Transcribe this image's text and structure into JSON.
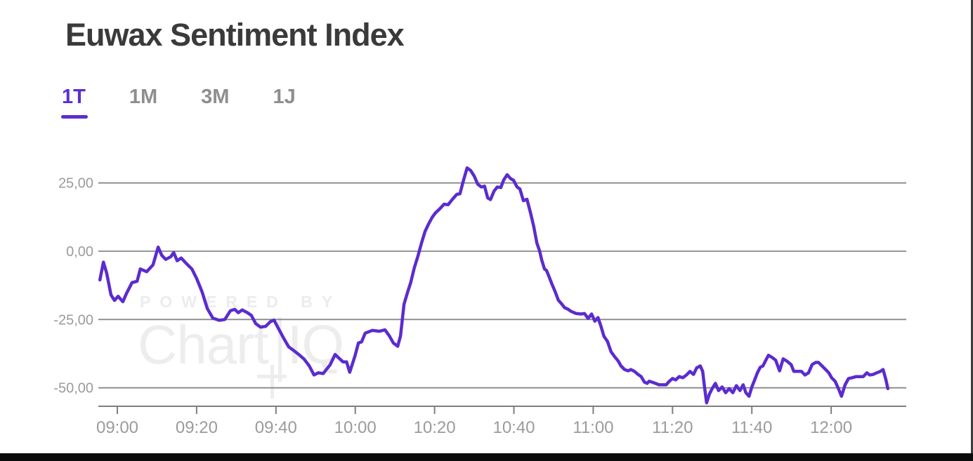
{
  "header": {
    "title": "Euwax Sentiment Index"
  },
  "tabs": [
    {
      "label": "1T",
      "active": true
    },
    {
      "label": "1M",
      "active": false
    },
    {
      "label": "3M",
      "active": false
    },
    {
      "label": "1J",
      "active": false
    }
  ],
  "watermark": {
    "line1": "POWERED BY",
    "brand_left": "Chart",
    "brand_right": "IQ"
  },
  "colors": {
    "accent": "#5b2cce",
    "grid": "#888888",
    "axis": "#7f7f7f",
    "axis_label": "#9b9b9b",
    "title_text": "#3a3a3a",
    "tab_inactive": "#8e8e8e",
    "tab_active": "#5b2ed1"
  },
  "chart_data": {
    "type": "line",
    "title": "Euwax Sentiment Index",
    "series_name": "Euwax Sentiment Index (1T)",
    "line_color": "#5b2cce",
    "xlabel": "",
    "ylabel": "",
    "grid": true,
    "legend": "none",
    "ylim": [
      -60,
      35
    ],
    "x_axis_unit": "minutes after 09:00",
    "y_ticks": [
      {
        "v": 25,
        "label": "25,00"
      },
      {
        "v": 0,
        "label": "0,00"
      },
      {
        "v": -25,
        "label": "-25,00"
      },
      {
        "v": -50,
        "label": "-50,00"
      }
    ],
    "x_ticks": [
      {
        "t": 0,
        "label": "09:00"
      },
      {
        "t": 20,
        "label": "09:20"
      },
      {
        "t": 40,
        "label": "09:40"
      },
      {
        "t": 60,
        "label": "10:00"
      },
      {
        "t": 80,
        "label": "10:20"
      },
      {
        "t": 100,
        "label": "10:40"
      },
      {
        "t": 120,
        "label": "11:00"
      },
      {
        "t": 140,
        "label": "11:20"
      },
      {
        "t": 160,
        "label": "11:40"
      },
      {
        "t": 180,
        "label": "12:00"
      }
    ],
    "points": [
      [
        -4.4,
        -10.5
      ],
      [
        -3.5,
        -4
      ],
      [
        -2.7,
        -8
      ],
      [
        -1.6,
        -16
      ],
      [
        -0.7,
        -18
      ],
      [
        0.2,
        -16.5
      ],
      [
        1.4,
        -18.5
      ],
      [
        2.3,
        -15.5
      ],
      [
        3.7,
        -11.5
      ],
      [
        5,
        -11
      ],
      [
        5.8,
        -6.5
      ],
      [
        7.4,
        -7.5
      ],
      [
        9,
        -5
      ],
      [
        10.3,
        1.5
      ],
      [
        11.2,
        -1.5
      ],
      [
        12.2,
        -3
      ],
      [
        13.5,
        -2
      ],
      [
        14.2,
        -0.5
      ],
      [
        15.1,
        -3.5
      ],
      [
        16.1,
        -2.5
      ],
      [
        17.4,
        -4.5
      ],
      [
        18.8,
        -6.5
      ],
      [
        20,
        -10
      ],
      [
        21.4,
        -15
      ],
      [
        22.7,
        -21
      ],
      [
        24.1,
        -24.5
      ],
      [
        25.7,
        -25.3
      ],
      [
        27.1,
        -25
      ],
      [
        28.5,
        -21.8
      ],
      [
        29.6,
        -21.3
      ],
      [
        30.5,
        -22.5
      ],
      [
        31.5,
        -21.5
      ],
      [
        32.8,
        -22.5
      ],
      [
        33.8,
        -23.5
      ],
      [
        34.9,
        -26.5
      ],
      [
        36.1,
        -27.8
      ],
      [
        37.4,
        -27.5
      ],
      [
        38.6,
        -25.8
      ],
      [
        39.5,
        -25.2
      ],
      [
        40.7,
        -28.5
      ],
      [
        42,
        -32
      ],
      [
        43.2,
        -35
      ],
      [
        44.6,
        -36.5
      ],
      [
        45.9,
        -38
      ],
      [
        47.1,
        -39.5
      ],
      [
        48.4,
        -42
      ],
      [
        49.6,
        -45.3
      ],
      [
        50.7,
        -44.5
      ],
      [
        51.9,
        -44.8
      ],
      [
        53.7,
        -41.5
      ],
      [
        54.9,
        -37.8
      ],
      [
        56.9,
        -40.5
      ],
      [
        57.8,
        -40.5
      ],
      [
        58.6,
        -44.3
      ],
      [
        59.9,
        -38.5
      ],
      [
        60.8,
        -33.6
      ],
      [
        61.6,
        -33.2
      ],
      [
        62.5,
        -30
      ],
      [
        64.3,
        -29
      ],
      [
        66.1,
        -29.3
      ],
      [
        67.5,
        -28.8
      ],
      [
        68.6,
        -31
      ],
      [
        69.6,
        -33.6
      ],
      [
        70.7,
        -34.8
      ],
      [
        71.4,
        -31
      ],
      [
        72.3,
        -19.4
      ],
      [
        73.2,
        -15
      ],
      [
        74,
        -11.4
      ],
      [
        74.9,
        -6
      ],
      [
        75.8,
        -1.8
      ],
      [
        76.7,
        3
      ],
      [
        77.6,
        7.3
      ],
      [
        78.5,
        10
      ],
      [
        79.4,
        12.4
      ],
      [
        80.2,
        14
      ],
      [
        81.3,
        15.5
      ],
      [
        82.4,
        17.2
      ],
      [
        83.4,
        17
      ],
      [
        84.5,
        19
      ],
      [
        85.6,
        20.8
      ],
      [
        86.4,
        21
      ],
      [
        87.3,
        26
      ],
      [
        88.2,
        30.5
      ],
      [
        89.1,
        29.5
      ],
      [
        90,
        27.5
      ],
      [
        90.9,
        24.5
      ],
      [
        91.8,
        23.5
      ],
      [
        92.6,
        23.8
      ],
      [
        93.4,
        19.5
      ],
      [
        94.1,
        18.9
      ],
      [
        95,
        22
      ],
      [
        95.8,
        23.5
      ],
      [
        96.7,
        23.3
      ],
      [
        97.4,
        26
      ],
      [
        98.3,
        28
      ],
      [
        99.2,
        26.5
      ],
      [
        99.9,
        26
      ],
      [
        100.8,
        23.5
      ],
      [
        101.5,
        22.8
      ],
      [
        102.4,
        18.5
      ],
      [
        103.3,
        19
      ],
      [
        104.2,
        14
      ],
      [
        105,
        9.1
      ],
      [
        105.8,
        3
      ],
      [
        106.5,
        0
      ],
      [
        107,
        -3.1
      ],
      [
        107.7,
        -6.5
      ],
      [
        108.2,
        -7
      ],
      [
        108.8,
        -9.1
      ],
      [
        109.5,
        -11.7
      ],
      [
        110.4,
        -14.8
      ],
      [
        111.2,
        -17.9
      ],
      [
        112.1,
        -19.4
      ],
      [
        112.8,
        -20.7
      ],
      [
        113.6,
        -21.2
      ],
      [
        114.4,
        -22
      ],
      [
        115.7,
        -22.8
      ],
      [
        116.9,
        -23
      ],
      [
        117.8,
        -22.8
      ],
      [
        118.7,
        -24.6
      ],
      [
        119.6,
        -23
      ],
      [
        120.4,
        -25.6
      ],
      [
        121.2,
        -24.3
      ],
      [
        121.9,
        -27.2
      ],
      [
        122.7,
        -31.1
      ],
      [
        123.6,
        -33
      ],
      [
        124.5,
        -36.8
      ],
      [
        125.4,
        -38.6
      ],
      [
        126.3,
        -40.2
      ],
      [
        127,
        -42
      ],
      [
        127.9,
        -43.3
      ],
      [
        128.8,
        -43.8
      ],
      [
        129.5,
        -43.3
      ],
      [
        130.4,
        -44
      ],
      [
        131.3,
        -45.1
      ],
      [
        132.1,
        -45.9
      ],
      [
        132.9,
        -47.9
      ],
      [
        133.6,
        -48.4
      ],
      [
        134.1,
        -47.6
      ],
      [
        134.8,
        -47.9
      ],
      [
        135.7,
        -48.4
      ],
      [
        136.6,
        -48.9
      ],
      [
        137.5,
        -48.9
      ],
      [
        138.4,
        -48.9
      ],
      [
        139.2,
        -47.6
      ],
      [
        140,
        -46.6
      ],
      [
        140.8,
        -47.1
      ],
      [
        141.7,
        -45.9
      ],
      [
        142.6,
        -46.3
      ],
      [
        143.5,
        -45.3
      ],
      [
        144.4,
        -44
      ],
      [
        145.3,
        -45.1
      ],
      [
        146.1,
        -42.7
      ],
      [
        147,
        -42
      ],
      [
        147.6,
        -44
      ],
      [
        148.1,
        -50
      ],
      [
        148.6,
        -55.5
      ],
      [
        149.3,
        -52.3
      ],
      [
        150,
        -50.3
      ],
      [
        150.8,
        -48.4
      ],
      [
        151.6,
        -51
      ],
      [
        152.5,
        -49.7
      ],
      [
        153.4,
        -51.8
      ],
      [
        154.3,
        -50.3
      ],
      [
        155.2,
        -51.8
      ],
      [
        156.1,
        -49.2
      ],
      [
        157,
        -51
      ],
      [
        157.8,
        -48.9
      ],
      [
        158.5,
        -51.8
      ],
      [
        159.3,
        -53.1
      ],
      [
        160,
        -49.7
      ],
      [
        160.7,
        -47.1
      ],
      [
        161.4,
        -44.5
      ],
      [
        162.1,
        -42.5
      ],
      [
        162.8,
        -42
      ],
      [
        163.7,
        -39.4
      ],
      [
        164.2,
        -38.1
      ],
      [
        165.1,
        -38.9
      ],
      [
        166,
        -39.9
      ],
      [
        167,
        -43.8
      ],
      [
        167.9,
        -39.4
      ],
      [
        168.8,
        -40.2
      ],
      [
        169.9,
        -41.5
      ],
      [
        170.6,
        -44
      ],
      [
        171.6,
        -44
      ],
      [
        172.5,
        -44
      ],
      [
        173.4,
        -45.3
      ],
      [
        174.3,
        -44.5
      ],
      [
        175.2,
        -41.5
      ],
      [
        176.1,
        -40.7
      ],
      [
        176.8,
        -40.7
      ],
      [
        177.7,
        -42
      ],
      [
        178.6,
        -43.3
      ],
      [
        179.4,
        -44.5
      ],
      [
        180.1,
        -46.3
      ],
      [
        181,
        -47.6
      ],
      [
        181.9,
        -50.5
      ],
      [
        182.6,
        -53.1
      ],
      [
        183.5,
        -48.9
      ],
      [
        184.4,
        -46.6
      ],
      [
        185.3,
        -46.3
      ],
      [
        186.3,
        -45.9
      ],
      [
        187.2,
        -45.9
      ],
      [
        188.1,
        -45.9
      ],
      [
        189,
        -44.5
      ],
      [
        189.7,
        -45.3
      ],
      [
        190.6,
        -45.1
      ],
      [
        191.5,
        -44.5
      ],
      [
        192.4,
        -44
      ],
      [
        193.1,
        -43.3
      ],
      [
        193.8,
        -47
      ],
      [
        194.3,
        -50.3
      ]
    ]
  }
}
